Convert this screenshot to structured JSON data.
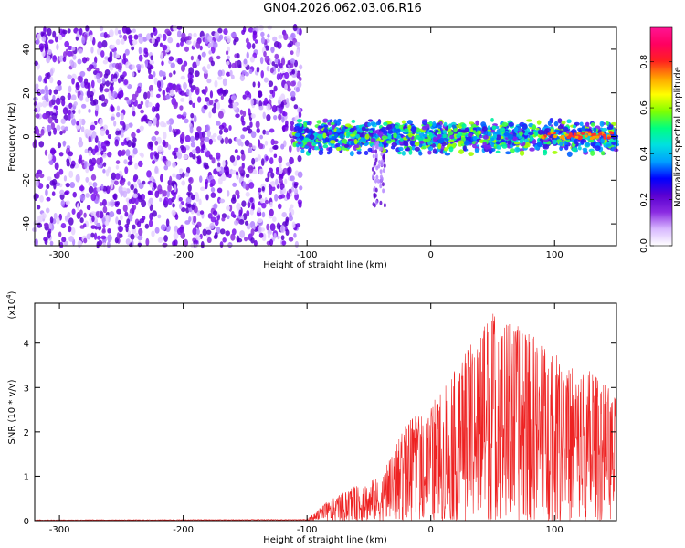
{
  "title": "GN04.2026.062.03.06.R16",
  "colorbar": {
    "label": "Normalized spectral amplitude",
    "ticks": [
      "0.0",
      "0.2",
      "0.4",
      "0.6",
      "0.8"
    ],
    "tick_values": [
      0.0,
      0.2,
      0.4,
      0.6,
      0.8
    ],
    "range": [
      0,
      0.95
    ],
    "stops": [
      "#ffffff",
      "#d8b8ff",
      "#8a2be2",
      "#5a00d0",
      "#0000ff",
      "#00a0ff",
      "#00e0e0",
      "#00ff80",
      "#80ff00",
      "#ffff00",
      "#ffa000",
      "#ff2020",
      "#ff0060",
      "#ff1493"
    ]
  },
  "chart_data": [
    {
      "type": "heatmap",
      "name": "spectrogram",
      "xlabel": "Height of straight line (km)",
      "ylabel": "Frequency (Hz)",
      "xlim": [
        -320,
        150
      ],
      "ylim": [
        -50,
        50
      ],
      "x_ticks": [
        -300,
        -200,
        -100,
        0,
        100
      ],
      "x_tick_labels": [
        "-300",
        "-200",
        "-100",
        "0",
        "100"
      ],
      "y_ticks": [
        -40,
        -20,
        0,
        20,
        40
      ],
      "y_tick_labels": [
        "-40",
        "-20",
        "0",
        "20",
        "40"
      ],
      "noise_region_x": [
        -320,
        -110
      ],
      "signal_band_center_hz": 0,
      "signal_band_halfwidth_hz": 6
    },
    {
      "type": "line",
      "name": "snr",
      "xlabel": "Height of straight line (km)",
      "ylabel": "SNR (10 * v/v)",
      "exponent_label": "(x10",
      "exponent_value": "4",
      "exponent_close": ")",
      "xlim": [
        -320,
        150
      ],
      "ylim": [
        0,
        4.9
      ],
      "x_ticks": [
        -300,
        -200,
        -100,
        0,
        100
      ],
      "x_tick_labels": [
        "-300",
        "-200",
        "-100",
        "0",
        "100"
      ],
      "y_ticks": [
        0,
        1,
        2,
        3,
        4
      ],
      "y_tick_labels": [
        "0",
        "1",
        "2",
        "3",
        "4"
      ],
      "color": "#ee2222",
      "envelope": [
        {
          "x": -320,
          "y": 0.02
        },
        {
          "x": -100,
          "y": 0.03
        },
        {
          "x": -85,
          "y": 0.4
        },
        {
          "x": -60,
          "y": 0.8
        },
        {
          "x": -40,
          "y": 1.0
        },
        {
          "x": -20,
          "y": 2.2
        },
        {
          "x": 0,
          "y": 2.6
        },
        {
          "x": 20,
          "y": 3.4
        },
        {
          "x": 40,
          "y": 4.4
        },
        {
          "x": 50,
          "y": 4.85
        },
        {
          "x": 70,
          "y": 4.4
        },
        {
          "x": 90,
          "y": 4.1
        },
        {
          "x": 110,
          "y": 3.5
        },
        {
          "x": 130,
          "y": 3.4
        },
        {
          "x": 150,
          "y": 2.8
        }
      ]
    }
  ]
}
